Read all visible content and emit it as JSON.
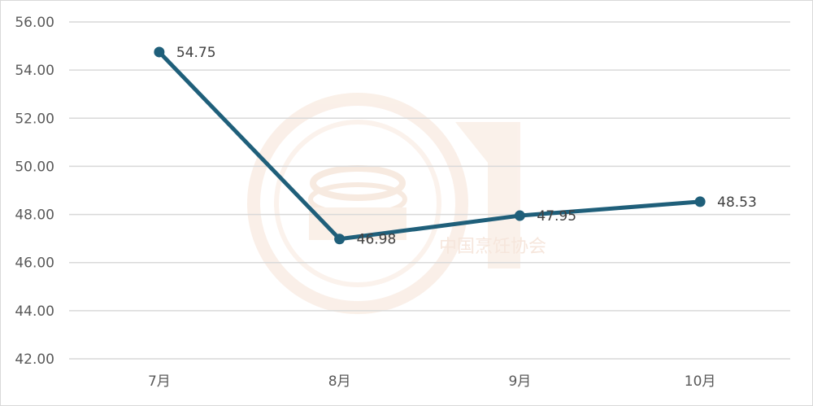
{
  "chart_data": {
    "type": "line",
    "title": "",
    "xlabel": "",
    "ylabel": "",
    "categories": [
      "7月",
      "8月",
      "9月",
      "10月"
    ],
    "series": [
      {
        "values": [
          54.75,
          46.98,
          47.95,
          48.53
        ]
      }
    ],
    "data_labels": [
      "54.75",
      "46.98",
      "47.95",
      "48.53"
    ],
    "ylim": [
      42,
      56
    ],
    "yticks": [
      "42.00",
      "44.00",
      "46.00",
      "48.00",
      "50.00",
      "52.00",
      "54.00",
      "56.00"
    ],
    "grid": true,
    "legend": "none",
    "colors": {
      "line": "#1f5f7a",
      "grid": "#d9d9d9",
      "watermark": "#f3d9c8"
    }
  },
  "watermark": {
    "text": "中国烹饪协会"
  }
}
